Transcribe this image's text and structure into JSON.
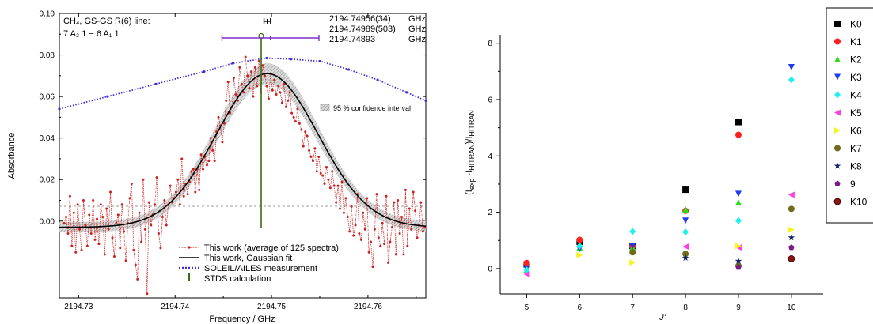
{
  "chart_data": [
    {
      "type": "line",
      "title_left": [
        "CH₄, GS-GS R(6) line:",
        "7 A₂ 1 − 6 A₁ 1"
      ],
      "freq_annotations": [
        {
          "value": "2194.74956(34)",
          "unit": "GHz",
          "color": "#000000"
        },
        {
          "value": "2194.74989(503)",
          "unit": "GHz",
          "color": "#7b2fd1"
        },
        {
          "value": "2194.74893",
          "unit": "GHz",
          "color": "#3a6b12"
        }
      ],
      "xlabel": "Frequency / GHz",
      "ylabel": "Absorbance",
      "xlim": [
        2194.728,
        2194.766
      ],
      "ylim": [
        -0.037,
        0.1
      ],
      "xticks": [
        "2194.73",
        "2194.74",
        "2194.75",
        "2194.76"
      ],
      "yticks": [
        "0.00",
        "0.02",
        "0.04",
        "0.06",
        "0.08",
        "0.10"
      ],
      "ytick_values": [
        0,
        0.02,
        0.04,
        0.06,
        0.08,
        0.1
      ],
      "confidence_label": "95 % confidence interval",
      "legend": [
        "This work (average of 125 spectra)",
        "This work, Gaussian fit",
        "SOLEIL/AILES measurement",
        "STDS calculation"
      ],
      "series": [
        {
          "name": "This work (average of 125 spectra)",
          "color": "#cc1f1f",
          "x": [
            2194.7285,
            2194.7287,
            2194.7289,
            2194.7291,
            2194.7293,
            2194.7295,
            2194.7297,
            2194.7299,
            2194.7301,
            2194.7303,
            2194.7305,
            2194.7307,
            2194.7309,
            2194.7311,
            2194.7313,
            2194.7315,
            2194.7317,
            2194.7319,
            2194.7321,
            2194.7323,
            2194.7325,
            2194.7327,
            2194.7329,
            2194.7331,
            2194.7333,
            2194.7335,
            2194.7337,
            2194.7339,
            2194.7341,
            2194.7343,
            2194.7345,
            2194.7347,
            2194.7349,
            2194.7351,
            2194.7353,
            2194.7355,
            2194.7357,
            2194.7359,
            2194.7361,
            2194.7363,
            2194.7365,
            2194.7367,
            2194.7369,
            2194.7371,
            2194.7373,
            2194.7375,
            2194.7377,
            2194.7379,
            2194.7381,
            2194.7383,
            2194.7385,
            2194.7387,
            2194.7389,
            2194.7391,
            2194.7393,
            2194.7395,
            2194.7397,
            2194.7399,
            2194.7401,
            2194.7403,
            2194.7405,
            2194.7407,
            2194.7409,
            2194.7411,
            2194.7413,
            2194.7415,
            2194.7417,
            2194.7419,
            2194.7421,
            2194.7423,
            2194.7425,
            2194.7427,
            2194.7429,
            2194.7431,
            2194.7433,
            2194.7435,
            2194.7437,
            2194.7439,
            2194.7441,
            2194.7443,
            2194.7445,
            2194.7447,
            2194.7449,
            2194.7451,
            2194.7453,
            2194.7455,
            2194.7457,
            2194.7459,
            2194.7461,
            2194.7463,
            2194.7465,
            2194.7467,
            2194.7469,
            2194.7471,
            2194.7473,
            2194.7475,
            2194.7477,
            2194.7479,
            2194.7481,
            2194.7483,
            2194.7485,
            2194.7487,
            2194.7489,
            2194.7491,
            2194.7493,
            2194.7495,
            2194.7497,
            2194.7499,
            2194.7501,
            2194.7503,
            2194.7505,
            2194.7507,
            2194.7509,
            2194.7511,
            2194.7513,
            2194.7515,
            2194.7517,
            2194.7519,
            2194.7521,
            2194.7523,
            2194.7525,
            2194.7527,
            2194.7529,
            2194.7531,
            2194.7533,
            2194.7535,
            2194.7537,
            2194.7539,
            2194.7541,
            2194.7543,
            2194.7545,
            2194.7547,
            2194.7549,
            2194.7551,
            2194.7553,
            2194.7555,
            2194.7557,
            2194.7559,
            2194.7561,
            2194.7563,
            2194.7565,
            2194.7567,
            2194.7569,
            2194.7571,
            2194.7573,
            2194.7575,
            2194.7577,
            2194.7579,
            2194.7581,
            2194.7583,
            2194.7585,
            2194.7587,
            2194.7589,
            2194.7591,
            2194.7593,
            2194.7595,
            2194.7597,
            2194.7599,
            2194.7601,
            2194.7603,
            2194.7605,
            2194.7607,
            2194.7609,
            2194.7611,
            2194.7613,
            2194.7615,
            2194.7617,
            2194.7619,
            2194.7621,
            2194.7623,
            2194.7625,
            2194.7627,
            2194.7629,
            2194.7631,
            2194.7633,
            2194.7635,
            2194.7637,
            2194.7639,
            2194.7641,
            2194.7643,
            2194.7645,
            2194.7647,
            2194.7649,
            2194.7651,
            2194.7653,
            2194.7655,
            2194.7657,
            2194.7659
          ],
          "y": [
            -0.001,
            0.002,
            -0.006,
            0.012,
            -0.012,
            0.004,
            -0.015,
            0.008,
            -0.004,
            -0.014,
            0.01,
            -0.002,
            -0.012,
            0.003,
            -0.006,
            0.01,
            -0.009,
            0.001,
            -0.011,
            0.008,
            0.002,
            -0.016,
            0.006,
            -0.004,
            0.014,
            -0.008,
            -0.017,
            -0.001,
            0.003,
            -0.013,
            0.008,
            -0.005,
            -0.019,
            -0.001,
            0.011,
            0.018,
            -0.014,
            -0.021,
            -0.028,
            0.004,
            -0.01,
            0.02,
            -0.004,
            -0.035,
            0.009,
            -0.002,
            0.003,
            0.008,
            0.021,
            -0.006,
            -0.013,
            0.002,
            0.01,
            -0.002,
            0.008,
            0.017,
            0.009,
            0.011,
            0.014,
            0.02,
            0.008,
            0.03,
            0.012,
            0.018,
            0.013,
            0.019,
            0.024,
            0.025,
            0.014,
            0.025,
            0.015,
            0.032,
            0.025,
            0.031,
            0.027,
            0.029,
            0.04,
            0.034,
            0.029,
            0.043,
            0.05,
            0.046,
            0.038,
            0.047,
            0.058,
            0.067,
            0.052,
            0.055,
            0.069,
            0.061,
            0.058,
            0.074,
            0.066,
            0.062,
            0.079,
            0.07,
            0.064,
            0.072,
            0.06,
            0.074,
            0.065,
            0.077,
            0.062,
            0.075,
            0.07,
            0.065,
            0.059,
            0.071,
            0.063,
            0.068,
            0.061,
            0.065,
            0.062,
            0.057,
            0.066,
            0.055,
            0.058,
            0.062,
            0.052,
            0.05,
            0.048,
            0.054,
            0.047,
            0.044,
            0.036,
            0.043,
            0.041,
            0.034,
            0.031,
            0.029,
            0.035,
            0.024,
            0.031,
            0.023,
            0.022,
            0.018,
            0.026,
            0.02,
            0.016,
            0.024,
            0.017,
            0.009,
            0.017,
            0.006,
            0.019,
            0.004,
            0.011,
            0.002,
            -0.005,
            0.007,
            -0.007,
            -0.002,
            0.013,
            -0.006,
            -0.009,
            0.004,
            -0.004,
            0.011,
            -0.015,
            -0.01,
            -0.022,
            -0.004,
            0.013,
            -0.008,
            -0.012,
            -0.001,
            -0.011,
            0.012,
            -0.02,
            -0.01,
            -0.003,
            0.009,
            -0.016,
            0.01,
            -0.006,
            0.002,
            -0.016,
            0.015,
            -0.012,
            0.006,
            -0.004,
            0.014,
            0.005,
            -0.008,
            -0.002,
            0.009,
            -0.005,
            -0.003
          ]
        },
        {
          "name": "This work, Gaussian fit",
          "color": "#000000",
          "baseline": -0.003,
          "amplitude": 0.074,
          "center": 2194.74956,
          "fwhm": 0.0124
        },
        {
          "name": "SOLEIL/AILES measurement",
          "color": "#4b2ad6",
          "x": [
            2194.728,
            2194.733,
            2194.738,
            2194.743,
            2194.746,
            2194.7495,
            2194.752,
            2194.755,
            2194.758,
            2194.761,
            2194.764,
            2194.766
          ],
          "y": [
            0.054,
            0.06,
            0.066,
            0.072,
            0.076,
            0.0785,
            0.078,
            0.077,
            0.073,
            0.068,
            0.062,
            0.058
          ]
        },
        {
          "name": "STDS calculation",
          "color": "#3a6b12",
          "x": [
            2194.74893
          ],
          "y": [
            0.088
          ]
        }
      ],
      "error_bars": [
        {
          "center": 2194.74956,
          "halfwidth": 0.00034,
          "y": 0.0962,
          "color": "#000000"
        },
        {
          "center": 2194.74989,
          "halfwidth": 0.00503,
          "y": 0.0882,
          "color": "#7b2fd1"
        }
      ]
    },
    {
      "type": "scatter",
      "xlabel": "J'",
      "ylabel": "(I_exp - I_HITRAN)/I_HITRAN",
      "xlim": [
        4.5,
        10.6
      ],
      "ylim": [
        -0.9,
        8.3
      ],
      "xticks": [
        "5",
        "6",
        "7",
        "8",
        "9",
        "10"
      ],
      "xtick_values": [
        5,
        6,
        7,
        8,
        9,
        10
      ],
      "yticks": [
        "0",
        "2",
        "4",
        "6",
        "8"
      ],
      "ytick_values": [
        0,
        2,
        4,
        6,
        8
      ],
      "series": [
        {
          "name": "K0",
          "color": "#000000",
          "marker": "square",
          "x": [
            5,
            6,
            7,
            8,
            9
          ],
          "y": [
            0.15,
            0.95,
            0.8,
            2.8,
            5.2
          ]
        },
        {
          "name": "K1",
          "color": "#ff1f1f",
          "marker": "circle",
          "x": [
            5,
            6,
            7,
            8,
            9
          ],
          "y": [
            0.2,
            1.02,
            0.78,
            2.05,
            4.75
          ]
        },
        {
          "name": "K2",
          "color": "#2bdc1f",
          "marker": "triangle-up",
          "x": [
            5,
            6,
            7,
            8,
            9
          ],
          "y": [
            -0.05,
            0.75,
            0.75,
            2.1,
            2.35
          ]
        },
        {
          "name": "K3",
          "color": "#1f3df0",
          "marker": "triangle-down",
          "x": [
            5,
            6,
            7,
            8,
            9,
            10
          ],
          "y": [
            0.0,
            0.7,
            0.8,
            1.7,
            2.65,
            7.15
          ]
        },
        {
          "name": "K4",
          "color": "#22f0f0",
          "marker": "diamond",
          "x": [
            5,
            6,
            7,
            8,
            9,
            10
          ],
          "y": [
            -0.05,
            0.8,
            1.32,
            1.3,
            1.7,
            6.7
          ]
        },
        {
          "name": "K5",
          "color": "#ff3fe6",
          "marker": "triangle-left",
          "x": [
            5,
            8,
            9,
            10
          ],
          "y": [
            -0.2,
            0.78,
            0.75,
            2.62
          ]
        },
        {
          "name": "K6",
          "color": "#f5f51c",
          "marker": "triangle-right",
          "x": [
            6,
            7,
            9,
            10
          ],
          "y": [
            0.48,
            0.22,
            0.8,
            1.38
          ]
        },
        {
          "name": "K7",
          "color": "#6f6a1c",
          "marker": "circle",
          "x": [
            7,
            8,
            9,
            10
          ],
          "y": [
            0.58,
            0.52,
            0.1,
            2.12
          ]
        },
        {
          "name": "K8",
          "color": "#14206a",
          "marker": "star",
          "x": [
            8,
            9,
            10
          ],
          "y": [
            0.38,
            0.27,
            1.1
          ]
        },
        {
          "name": "9",
          "color": "#7a1a86",
          "marker": "pentagon",
          "x": [
            9,
            10
          ],
          "y": [
            0.05,
            0.75
          ]
        },
        {
          "name": "K10",
          "color": "#8a1414",
          "marker": "circle-dark",
          "x": [
            10
          ],
          "y": [
            0.35
          ]
        }
      ]
    }
  ]
}
